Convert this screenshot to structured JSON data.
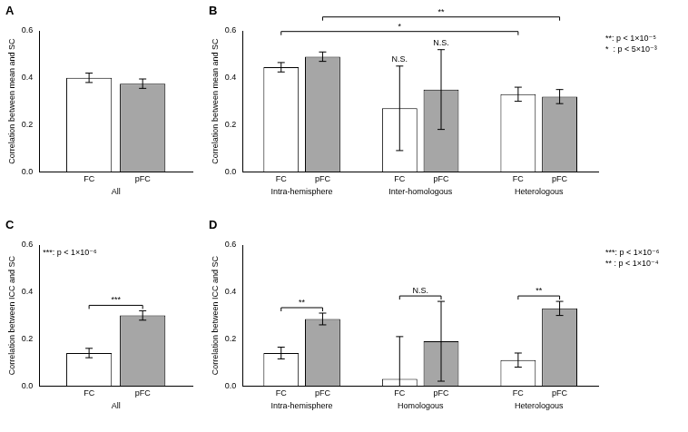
{
  "chart_data": [
    {
      "type": "bar",
      "panel": "A",
      "y_label": "Correlation between mean and SC",
      "categories": [
        "All"
      ],
      "series": [
        {
          "name": "FC",
          "color": "#ffffff",
          "values": [
            0.4
          ],
          "errors": [
            0.02
          ]
        },
        {
          "name": "pFC",
          "color": "#a6a6a6",
          "values": [
            0.375
          ],
          "errors": [
            0.02
          ]
        }
      ],
      "ylim": [
        0,
        0.6
      ],
      "yticks": [
        {
          "value": 0,
          "label": "0.0"
        },
        0.2,
        0.4,
        0.6
      ],
      "grid": false,
      "annotations": [],
      "significance_key": []
    },
    {
      "type": "bar",
      "panel": "B",
      "y_label": "Correlation between mean and SC",
      "categories": [
        "Intra-hemisphere",
        "Inter-homologous",
        "Heterologous"
      ],
      "series": [
        {
          "name": "FC",
          "color": "#ffffff",
          "values": [
            0.445,
            0.27,
            0.33
          ],
          "errors": [
            0.02,
            0.18,
            0.03
          ]
        },
        {
          "name": "pFC",
          "color": "#a6a6a6",
          "values": [
            0.49,
            0.35,
            0.32
          ],
          "errors": [
            0.02,
            0.17,
            0.03
          ]
        }
      ],
      "ylim": [
        0,
        0.6
      ],
      "yticks": [
        {
          "value": 0,
          "label": "0.0"
        },
        0.2,
        0.4,
        0.6
      ],
      "grid": false,
      "annotations": [
        {
          "text": "N.S.",
          "at": {
            "series": "FC",
            "category": "Inter-homologous"
          }
        },
        {
          "text": "N.S.",
          "at": {
            "series": "pFC",
            "category": "Inter-homologous"
          }
        },
        {
          "text": "*",
          "from": {
            "series": "FC",
            "category": "Intra-hemisphere"
          },
          "to": {
            "series": "FC",
            "category": "Heterologous"
          }
        },
        {
          "text": "**",
          "from": {
            "series": "pFC",
            "category": "Intra-hemisphere"
          },
          "to": {
            "series": "pFC",
            "category": "Heterologous"
          }
        }
      ],
      "significance_key": [
        "**: p < 1×10⁻⁵",
        "*  : p < 5×10⁻³"
      ]
    },
    {
      "type": "bar",
      "panel": "C",
      "y_label": "Correlation between ICC and SC",
      "categories": [
        "All"
      ],
      "series": [
        {
          "name": "FC",
          "color": "#ffffff",
          "values": [
            0.14
          ],
          "errors": [
            0.02
          ]
        },
        {
          "name": "pFC",
          "color": "#a6a6a6",
          "values": [
            0.3
          ],
          "errors": [
            0.02
          ]
        }
      ],
      "ylim": [
        0,
        0.6
      ],
      "yticks": [
        {
          "value": 0,
          "label": "0.0"
        },
        0.2,
        0.4,
        0.6
      ],
      "grid": false,
      "annotations": [
        {
          "text": "***",
          "from": {
            "series": "FC",
            "category": "All"
          },
          "to": {
            "series": "pFC",
            "category": "All"
          }
        }
      ],
      "significance_key": [
        "***: p < 1×10⁻⁶"
      ]
    },
    {
      "type": "bar",
      "panel": "D",
      "y_label": "Correlation between ICC and SC",
      "categories": [
        "Intra-hemisphere",
        "Homologous",
        "Heterologous"
      ],
      "series": [
        {
          "name": "FC",
          "color": "#ffffff",
          "values": [
            0.14,
            0.03,
            0.11
          ],
          "errors": [
            0.025,
            0.18,
            0.03
          ]
        },
        {
          "name": "pFC",
          "color": "#a6a6a6",
          "values": [
            0.285,
            0.19,
            0.33
          ],
          "errors": [
            0.025,
            0.17,
            0.03
          ]
        }
      ],
      "ylim": [
        0,
        0.6
      ],
      "yticks": [
        {
          "value": 0,
          "label": "0.0"
        },
        0.2,
        0.4,
        0.6
      ],
      "grid": false,
      "annotations": [
        {
          "text": "**",
          "from": {
            "series": "FC",
            "category": "Intra-hemisphere"
          },
          "to": {
            "series": "pFC",
            "category": "Intra-hemisphere"
          }
        },
        {
          "text": "N.S.",
          "from": {
            "series": "FC",
            "category": "Homologous"
          },
          "to": {
            "series": "pFC",
            "category": "Homologous"
          }
        },
        {
          "text": "**",
          "from": {
            "series": "FC",
            "category": "Heterologous"
          },
          "to": {
            "series": "pFC",
            "category": "Heterologous"
          }
        }
      ],
      "significance_key": [
        "***: p < 1×10⁻⁶",
        "** : p < 1×10⁻⁴"
      ]
    }
  ]
}
